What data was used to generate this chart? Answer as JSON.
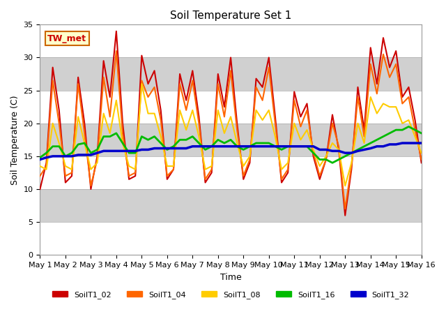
{
  "title": "Soil Temperature Set 1",
  "xlabel": "Time",
  "ylabel": "Soil Temperature (C)",
  "ylim": [
    0,
    35
  ],
  "xlim": [
    0,
    15
  ],
  "xtick_labels": [
    "May 1",
    "May 2",
    "May 3",
    "May 4",
    "May 5",
    "May 6",
    "May 7",
    "May 8",
    "May 9",
    "May 10",
    "May 11",
    "May 12",
    "May 13",
    "May 14",
    "May 15",
    "May 16"
  ],
  "xtick_positions": [
    0,
    1,
    2,
    3,
    4,
    5,
    6,
    7,
    8,
    9,
    10,
    11,
    12,
    13,
    14,
    15
  ],
  "ytick_positions": [
    0,
    5,
    10,
    15,
    20,
    25,
    30,
    35
  ],
  "annotation_text": "TW_met",
  "annotation_color": "#cc0000",
  "annotation_bg": "#ffffcc",
  "annotation_border": "#cc6600",
  "background_color": "#ffffff",
  "plot_bg_color": "#e8e8e8",
  "band_color": "#d0d0d0",
  "legend_entries": [
    "SoilT1_02",
    "SoilT1_04",
    "SoilT1_08",
    "SoilT1_16",
    "SoilT1_32"
  ],
  "line_colors": [
    "#cc0000",
    "#ff6600",
    "#ffcc00",
    "#00bb00",
    "#0000cc"
  ],
  "line_widths": [
    1.5,
    1.5,
    1.5,
    2.0,
    2.5
  ],
  "t": [
    0.0,
    0.25,
    0.5,
    0.75,
    1.0,
    1.25,
    1.5,
    1.75,
    2.0,
    2.25,
    2.5,
    2.75,
    3.0,
    3.25,
    3.5,
    3.75,
    4.0,
    4.25,
    4.5,
    4.75,
    5.0,
    5.25,
    5.5,
    5.75,
    6.0,
    6.25,
    6.5,
    6.75,
    7.0,
    7.25,
    7.5,
    7.75,
    8.0,
    8.25,
    8.5,
    8.75,
    9.0,
    9.25,
    9.5,
    9.75,
    10.0,
    10.25,
    10.5,
    10.75,
    11.0,
    11.25,
    11.5,
    11.75,
    12.0,
    12.25,
    12.5,
    12.75,
    13.0,
    13.25,
    13.5,
    13.75,
    14.0,
    14.25,
    14.5,
    14.75,
    15.0
  ],
  "SoilT1_02": [
    10.0,
    14.0,
    28.5,
    22.0,
    11.0,
    12.0,
    27.0,
    20.0,
    10.0,
    15.0,
    29.5,
    24.0,
    34.0,
    20.0,
    11.5,
    12.0,
    30.3,
    26.0,
    28.0,
    22.0,
    11.5,
    13.0,
    27.5,
    23.5,
    28.0,
    21.0,
    11.0,
    12.5,
    27.5,
    22.5,
    30.0,
    20.0,
    11.5,
    14.0,
    26.8,
    25.5,
    30.0,
    21.0,
    11.0,
    12.5,
    24.8,
    21.0,
    23.0,
    15.0,
    11.5,
    14.5,
    21.3,
    16.0,
    6.0,
    13.0,
    25.5,
    19.0,
    31.5,
    26.0,
    33.0,
    28.5,
    31.0,
    24.0,
    25.5,
    20.5,
    14.0
  ],
  "SoilT1_04": [
    12.0,
    13.5,
    26.5,
    20.0,
    12.0,
    12.5,
    26.0,
    18.5,
    10.5,
    14.5,
    27.0,
    21.0,
    31.0,
    18.5,
    12.0,
    12.5,
    26.5,
    24.0,
    25.5,
    20.5,
    12.0,
    13.0,
    26.0,
    22.0,
    26.5,
    20.0,
    11.5,
    13.0,
    26.0,
    21.0,
    28.0,
    19.0,
    12.0,
    14.5,
    25.5,
    23.5,
    28.5,
    20.0,
    11.5,
    13.0,
    23.5,
    19.5,
    22.0,
    15.5,
    12.0,
    14.5,
    20.0,
    16.5,
    7.0,
    13.5,
    24.0,
    18.0,
    29.0,
    24.5,
    30.5,
    27.0,
    29.0,
    23.0,
    24.0,
    19.0,
    14.5
  ],
  "SoilT1_08": [
    13.5,
    13.0,
    20.0,
    17.0,
    13.5,
    13.0,
    21.0,
    17.0,
    13.0,
    14.0,
    21.5,
    18.5,
    23.5,
    17.0,
    13.5,
    13.0,
    26.0,
    21.5,
    21.5,
    18.0,
    13.5,
    13.5,
    22.0,
    19.0,
    22.0,
    18.0,
    13.0,
    13.5,
    22.0,
    18.5,
    21.0,
    17.0,
    13.5,
    15.0,
    22.0,
    20.5,
    22.0,
    18.0,
    13.0,
    14.0,
    20.0,
    17.5,
    19.0,
    16.0,
    13.5,
    15.0,
    17.0,
    16.0,
    10.5,
    14.0,
    20.0,
    17.0,
    24.0,
    21.5,
    23.0,
    22.5,
    22.5,
    20.0,
    20.5,
    18.0,
    15.5
  ],
  "SoilT1_16": [
    14.8,
    15.5,
    16.5,
    16.5,
    15.0,
    15.5,
    16.8,
    17.0,
    15.5,
    16.0,
    18.0,
    18.0,
    18.5,
    17.0,
    15.5,
    15.5,
    18.0,
    17.5,
    18.0,
    17.0,
    16.0,
    16.5,
    17.5,
    17.5,
    18.0,
    17.0,
    16.0,
    16.5,
    17.5,
    17.0,
    17.5,
    16.5,
    16.0,
    16.5,
    17.0,
    17.0,
    17.0,
    16.5,
    16.0,
    16.5,
    16.5,
    16.5,
    16.5,
    15.5,
    14.5,
    14.5,
    14.0,
    14.5,
    15.0,
    15.5,
    16.0,
    16.5,
    17.0,
    17.5,
    18.0,
    18.5,
    19.0,
    19.0,
    19.5,
    19.0,
    18.5
  ],
  "SoilT1_32": [
    14.5,
    14.8,
    15.0,
    15.0,
    15.0,
    15.0,
    15.2,
    15.2,
    15.2,
    15.5,
    15.8,
    15.8,
    15.8,
    15.8,
    15.8,
    15.8,
    16.0,
    16.0,
    16.2,
    16.2,
    16.2,
    16.2,
    16.2,
    16.2,
    16.5,
    16.5,
    16.5,
    16.5,
    16.5,
    16.5,
    16.5,
    16.5,
    16.5,
    16.5,
    16.5,
    16.5,
    16.5,
    16.5,
    16.5,
    16.5,
    16.5,
    16.5,
    16.5,
    16.5,
    16.0,
    16.0,
    15.8,
    15.8,
    15.5,
    15.5,
    15.8,
    16.0,
    16.2,
    16.5,
    16.5,
    16.8,
    16.8,
    17.0,
    17.0,
    17.0,
    17.0
  ]
}
